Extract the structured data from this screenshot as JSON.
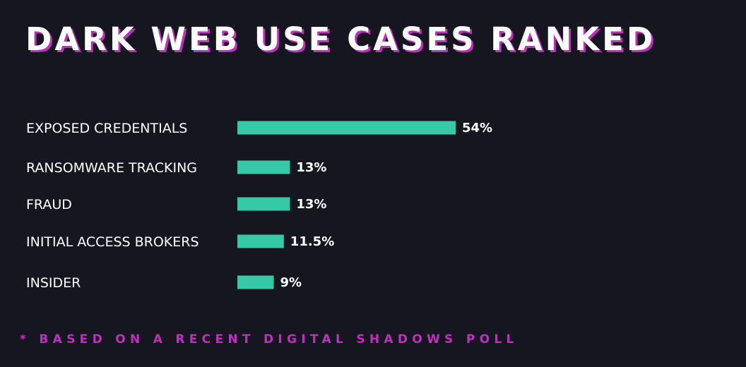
{
  "colors": {
    "background": "#15161f",
    "bar": "#36c9a8",
    "accent": "#c12fbf",
    "text": "#ffffff"
  },
  "chart_data": {
    "type": "bar",
    "orientation": "horizontal",
    "title": "DARK WEB USE CASES RANKED",
    "categories": [
      "EXPOSED CREDENTIALS",
      "RANSOMWARE TRACKING",
      "FRAUD",
      "INITIAL ACCESS BROKERS",
      "INSIDER"
    ],
    "values": [
      54,
      13,
      13,
      11.5,
      9
    ],
    "value_labels": [
      "54%",
      "13%",
      "13%",
      "11.5%",
      "9%"
    ],
    "unit": "%",
    "xlim": [
      0,
      54
    ],
    "grid": false,
    "legend": "none",
    "footnote": "* BASED ON A RECENT DIGITAL SHADOWS POLL"
  }
}
